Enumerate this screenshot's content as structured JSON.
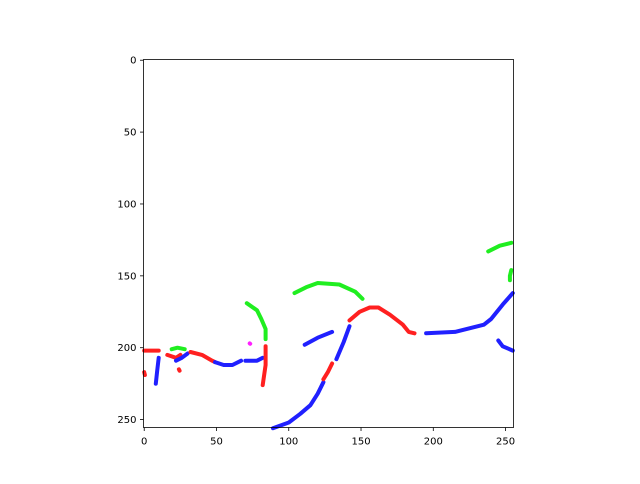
{
  "chart_data": {
    "type": "image",
    "xlim": [
      -0.5,
      255.5
    ],
    "ylim": [
      255.5,
      -0.5
    ],
    "y_inverted": true,
    "grid": false,
    "x_ticks": [
      "0",
      "50",
      "100",
      "150",
      "200",
      "250"
    ],
    "y_ticks": [
      "0",
      "50",
      "100",
      "150",
      "200",
      "250"
    ],
    "background": "#ffffff",
    "series": [
      {
        "color": "#ff2020",
        "points": [
          [
            0,
            202
          ],
          [
            10,
            202
          ]
        ]
      },
      {
        "color": "#ff2020",
        "points": [
          [
            0,
            217
          ],
          [
            0.5,
            219
          ]
        ]
      },
      {
        "color": "#2020ff",
        "points": [
          [
            10,
            207
          ],
          [
            9,
            216
          ],
          [
            8,
            225
          ]
        ]
      },
      {
        "color": "#ff2020",
        "points": [
          [
            16,
            205
          ],
          [
            22,
            207
          ],
          [
            25,
            205
          ]
        ]
      },
      {
        "color": "#2020ff",
        "points": [
          [
            22,
            209
          ],
          [
            26,
            207
          ],
          [
            30,
            204
          ]
        ]
      },
      {
        "color": "#ff2020",
        "points": [
          [
            32,
            203
          ],
          [
            40,
            205
          ],
          [
            47,
            209
          ],
          [
            49,
            210
          ]
        ]
      },
      {
        "color": "#2020ff",
        "points": [
          [
            49,
            210
          ],
          [
            55,
            212
          ],
          [
            61,
            212
          ],
          [
            67,
            209
          ]
        ]
      },
      {
        "color": "#2020ff",
        "points": [
          [
            70,
            209
          ],
          [
            78,
            209
          ],
          [
            82,
            207
          ]
        ]
      },
      {
        "color": "#ff2020",
        "points": [
          [
            84,
            199
          ],
          [
            84,
            212
          ],
          [
            82,
            226
          ]
        ]
      },
      {
        "color": "#20ee20",
        "points": [
          [
            71,
            169
          ],
          [
            78,
            174
          ],
          [
            81,
            180
          ],
          [
            84,
            187
          ],
          [
            84,
            194
          ]
        ]
      },
      {
        "color": "#20ee20",
        "points": [
          [
            19,
            201
          ],
          [
            23,
            200
          ],
          [
            28,
            201
          ]
        ]
      },
      {
        "color": "#ff2020",
        "points": [
          [
            24,
            215
          ],
          [
            24.5,
            216
          ]
        ]
      },
      {
        "color": "#ff20ff",
        "points": [
          [
            73,
            197
          ],
          [
            73.3,
            197.3
          ]
        ]
      },
      {
        "color": "#20ee20",
        "points": [
          [
            104,
            162
          ],
          [
            112,
            158
          ],
          [
            120,
            155
          ],
          [
            135,
            156
          ],
          [
            146,
            161
          ],
          [
            151,
            166
          ]
        ]
      },
      {
        "color": "#2020ff",
        "points": [
          [
            111,
            198
          ],
          [
            120,
            193
          ],
          [
            130,
            189
          ]
        ]
      },
      {
        "color": "#2020ff",
        "points": [
          [
            89,
            256
          ],
          [
            100,
            252
          ],
          [
            108,
            246
          ],
          [
            115,
            240
          ],
          [
            120,
            232
          ],
          [
            124,
            224
          ]
        ]
      },
      {
        "color": "#ff2020",
        "points": [
          [
            124,
            222
          ],
          [
            127,
            217
          ],
          [
            130,
            211
          ]
        ]
      },
      {
        "color": "#2020ff",
        "points": [
          [
            133,
            208
          ],
          [
            138,
            196
          ],
          [
            142,
            185
          ]
        ]
      },
      {
        "color": "#ff2020",
        "points": [
          [
            142,
            181
          ],
          [
            149,
            175
          ],
          [
            156,
            172
          ],
          [
            162,
            172
          ],
          [
            170,
            177
          ],
          [
            179,
            184
          ],
          [
            183,
            189
          ],
          [
            187,
            190
          ]
        ]
      },
      {
        "color": "#2020ff",
        "points": [
          [
            195,
            190
          ],
          [
            215,
            189
          ],
          [
            235,
            184
          ],
          [
            240,
            180
          ],
          [
            248,
            170
          ],
          [
            255,
            162
          ]
        ]
      },
      {
        "color": "#20ee20",
        "points": [
          [
            238,
            133
          ],
          [
            246,
            129
          ],
          [
            254,
            127
          ]
        ]
      },
      {
        "color": "#20ee20",
        "points": [
          [
            254,
            146
          ],
          [
            253,
            150
          ],
          [
            253,
            153
          ]
        ]
      },
      {
        "color": "#2020ff",
        "points": [
          [
            245,
            195
          ],
          [
            248,
            199
          ],
          [
            255,
            202
          ]
        ]
      }
    ]
  }
}
